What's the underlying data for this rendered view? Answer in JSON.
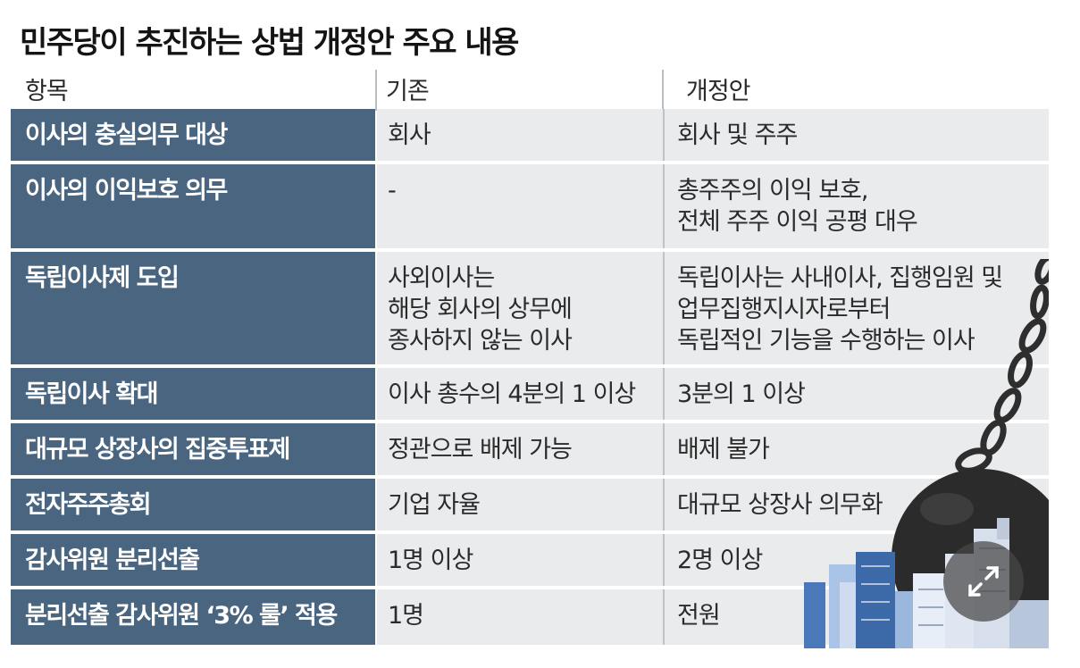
{
  "title": "민주당이 추진하는 상법 개정안 주요 내용",
  "headers": {
    "item": "항목",
    "before": "기존",
    "after": "개정안"
  },
  "rows": [
    {
      "item": [
        "이사의 충실의무 대상"
      ],
      "before": [
        "회사"
      ],
      "after": [
        "회사 및 주주"
      ]
    },
    {
      "item": [
        "이사의 이익보호 의무"
      ],
      "before": [
        "-"
      ],
      "after": [
        "총주주의 이익 보호,",
        "전체 주주 이익 공평 대우"
      ]
    },
    {
      "item": [
        "독립이사제 도입"
      ],
      "before": [
        "사외이사는",
        "해당 회사의 상무에",
        "종사하지 않는 이사"
      ],
      "after": [
        "독립이사는 사내이사, 집행임원 및",
        "업무집행지시자로부터",
        "독립적인 기능을 수행하는 이사"
      ]
    },
    {
      "item": [
        "독립이사 확대"
      ],
      "before": [
        "이사 총수의 4분의 1 이상"
      ],
      "after": [
        "3분의 1 이상"
      ]
    },
    {
      "item": [
        "대규모 상장사의 집중투표제"
      ],
      "before": [
        "정관으로 배제 가능"
      ],
      "after": [
        "배제 불가"
      ]
    },
    {
      "item": [
        "전자주주총회"
      ],
      "before": [
        "기업 자율"
      ],
      "after": [
        "대규모 상장사 의무화"
      ]
    },
    {
      "item": [
        "감사위원 분리선출"
      ],
      "before": [
        "1명 이상"
      ],
      "after": [
        "2명 이상"
      ]
    },
    {
      "item": [
        "분리선출 감사위원 ‘3% 룰’ 적용"
      ],
      "before": [
        "1명"
      ],
      "after": [
        "전원"
      ]
    }
  ],
  "colors": {
    "label_bg": "#4a6580",
    "cell_bg": "#eaebed",
    "ball": "#2b2b2b"
  },
  "icons": {
    "expand": "expand-arrows-icon",
    "illustration": "wrecking-ball-illustration"
  }
}
